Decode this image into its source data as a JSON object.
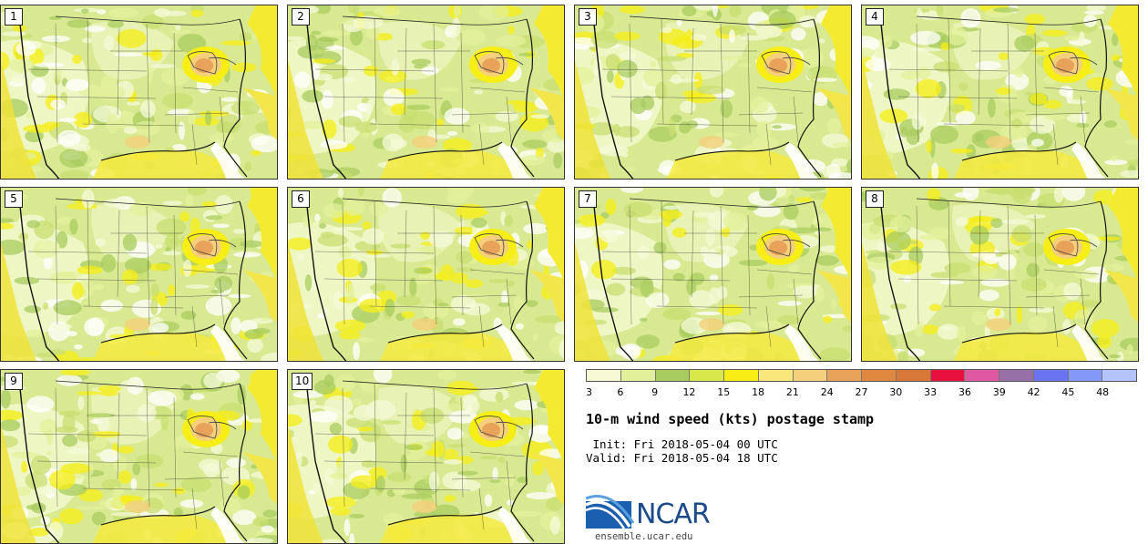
{
  "panels": [
    {
      "label": "1"
    },
    {
      "label": "2"
    },
    {
      "label": "3"
    },
    {
      "label": "4"
    },
    {
      "label": "5"
    },
    {
      "label": "6"
    },
    {
      "label": "7"
    },
    {
      "label": "8"
    },
    {
      "label": "9"
    },
    {
      "label": "10"
    }
  ],
  "colorbar": {
    "colors": [
      "#f6f9d4",
      "#e3f09a",
      "#a8cc5f",
      "#d8e84a",
      "#f6ee14",
      "#fae77c",
      "#f4cf7c",
      "#e8a25a",
      "#e08840",
      "#d87838",
      "#e8103c",
      "#e058a0",
      "#9870a8",
      "#6a74f0",
      "#8498fa",
      "#b4c4fa"
    ],
    "ticks": [
      "3",
      "6",
      "9",
      "12",
      "15",
      "18",
      "21",
      "24",
      "27",
      "30",
      "33",
      "36",
      "39",
      "42",
      "45",
      "48"
    ]
  },
  "title": "10-m wind speed (kts) postage stamp",
  "init_label": " Init: Fri 2018-05-04 00 UTC",
  "valid_label": "Valid: Fri 2018-05-04 18 UTC",
  "logo": {
    "name": "NCAR",
    "url": "ensemble.ucar.edu",
    "logo_icon": "ncar-logo-icon"
  }
}
